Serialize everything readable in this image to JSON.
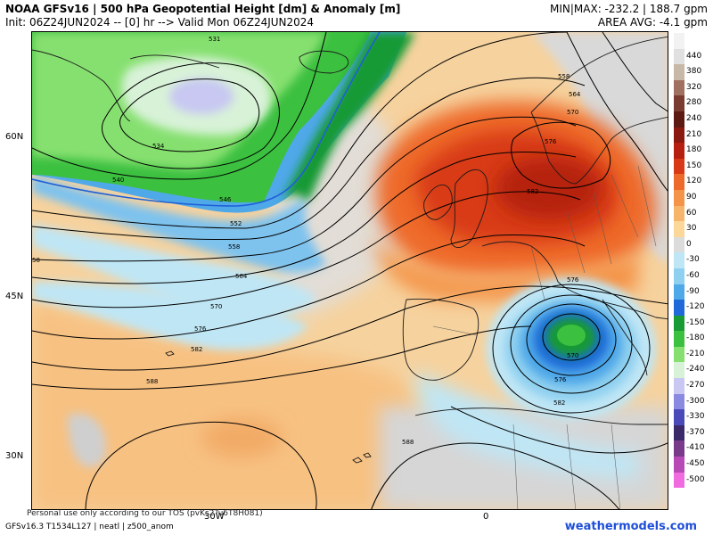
{
  "header": {
    "title_line1": "NOAA GFSv16 | 500 hPa Geopotential Height [dm] & Anomaly [m]",
    "title_line2": "Init: 06Z24JUN2024 -- [0] hr --> Valid Mon 06Z24JUN2024",
    "minmax": "MIN|MAX: -232.2 | 188.7 gpm",
    "area_avg": "AREA AVG: -4.1 gpm"
  },
  "axes": {
    "lat_labels": [
      "60N",
      "45N",
      "30N"
    ],
    "lon_labels": [
      "30W",
      "0"
    ]
  },
  "legend": {
    "items": [
      {
        "label": "",
        "color": "#f2f2f2"
      },
      {
        "label": "440",
        "color": "#e0e0e0"
      },
      {
        "label": "380",
        "color": "#c8b8a8"
      },
      {
        "label": "320",
        "color": "#a07060"
      },
      {
        "label": "280",
        "color": "#7a3b30"
      },
      {
        "label": "240",
        "color": "#5c1a12"
      },
      {
        "label": "210",
        "color": "#8a1a10"
      },
      {
        "label": "180",
        "color": "#b52010"
      },
      {
        "label": "150",
        "color": "#d83a18"
      },
      {
        "label": "120",
        "color": "#ee6a2a"
      },
      {
        "label": "90",
        "color": "#f49448"
      },
      {
        "label": "60",
        "color": "#f7b56c"
      },
      {
        "label": "30",
        "color": "#fbd89a"
      },
      {
        "label": "0",
        "color": "#dcdcdc"
      },
      {
        "label": "-30",
        "color": "#bfe6f5"
      },
      {
        "label": "-60",
        "color": "#8fd0f0"
      },
      {
        "label": "-90",
        "color": "#4fa8e8"
      },
      {
        "label": "-120",
        "color": "#1f6ad8"
      },
      {
        "label": "-150",
        "color": "#189a34"
      },
      {
        "label": "-180",
        "color": "#3cc040"
      },
      {
        "label": "-210",
        "color": "#86e070"
      },
      {
        "label": "-240",
        "color": "#d8f2d8"
      },
      {
        "label": "-270",
        "color": "#c8c8f2"
      },
      {
        "label": "-300",
        "color": "#8a8ae0"
      },
      {
        "label": "-330",
        "color": "#4a4ab8"
      },
      {
        "label": "-370",
        "color": "#3a2a6a"
      },
      {
        "label": "-410",
        "color": "#7a3a8a"
      },
      {
        "label": "-450",
        "color": "#b84ab8"
      },
      {
        "label": "-500",
        "color": "#f06ae0"
      }
    ]
  },
  "contour_labels": [
    "531",
    "534",
    "540",
    "546",
    "552",
    "558",
    "564",
    "570",
    "576",
    "582",
    "588",
    "558",
    "564",
    "570",
    "576",
    "582",
    "576",
    "570",
    "576",
    "582",
    "588",
    "58"
  ],
  "footer": {
    "left": "GFSv16.3 T1534L127 | neatl | z500_anom",
    "tos": "Personal use only according to our TOS (pvKs2Tu6T8H081)",
    "brand": "weathermodels.com"
  }
}
